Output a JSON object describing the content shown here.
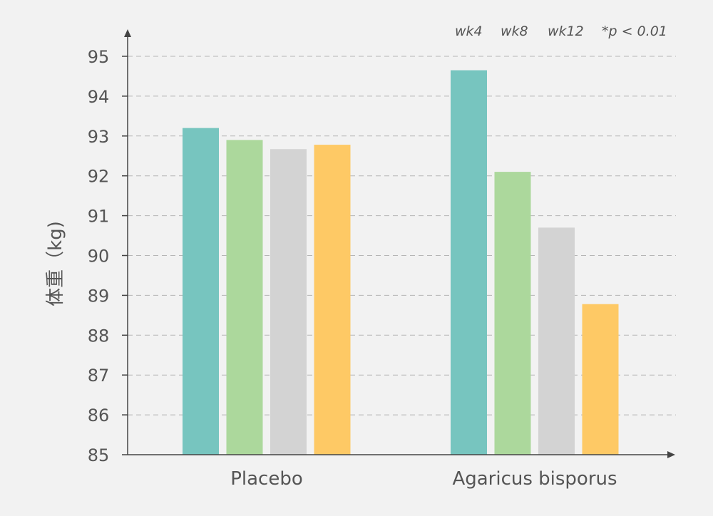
{
  "chart_data": {
    "type": "bar",
    "categories": [
      "Placebo",
      "Agaricus bisporus"
    ],
    "series": [
      {
        "name": "wk4",
        "values": [
          93.2,
          94.65
        ],
        "color": "#77c5bf"
      },
      {
        "name": "wk8",
        "values": [
          92.9,
          92.1
        ],
        "color": "#acd89c"
      },
      {
        "name": "wk12",
        "values": [
          92.67,
          90.7
        ],
        "color": "#d3d3d3"
      },
      {
        "values": [
          92.78,
          88.78
        ],
        "color": "#fec965"
      }
    ],
    "ylabel": "体重（kg)",
    "xlabel": "",
    "ylim": [
      85,
      95
    ],
    "yticks": [
      85,
      86,
      87,
      88,
      89,
      90,
      91,
      92,
      93,
      94,
      95
    ],
    "grid": true,
    "annotation": "*p < 0.01"
  }
}
